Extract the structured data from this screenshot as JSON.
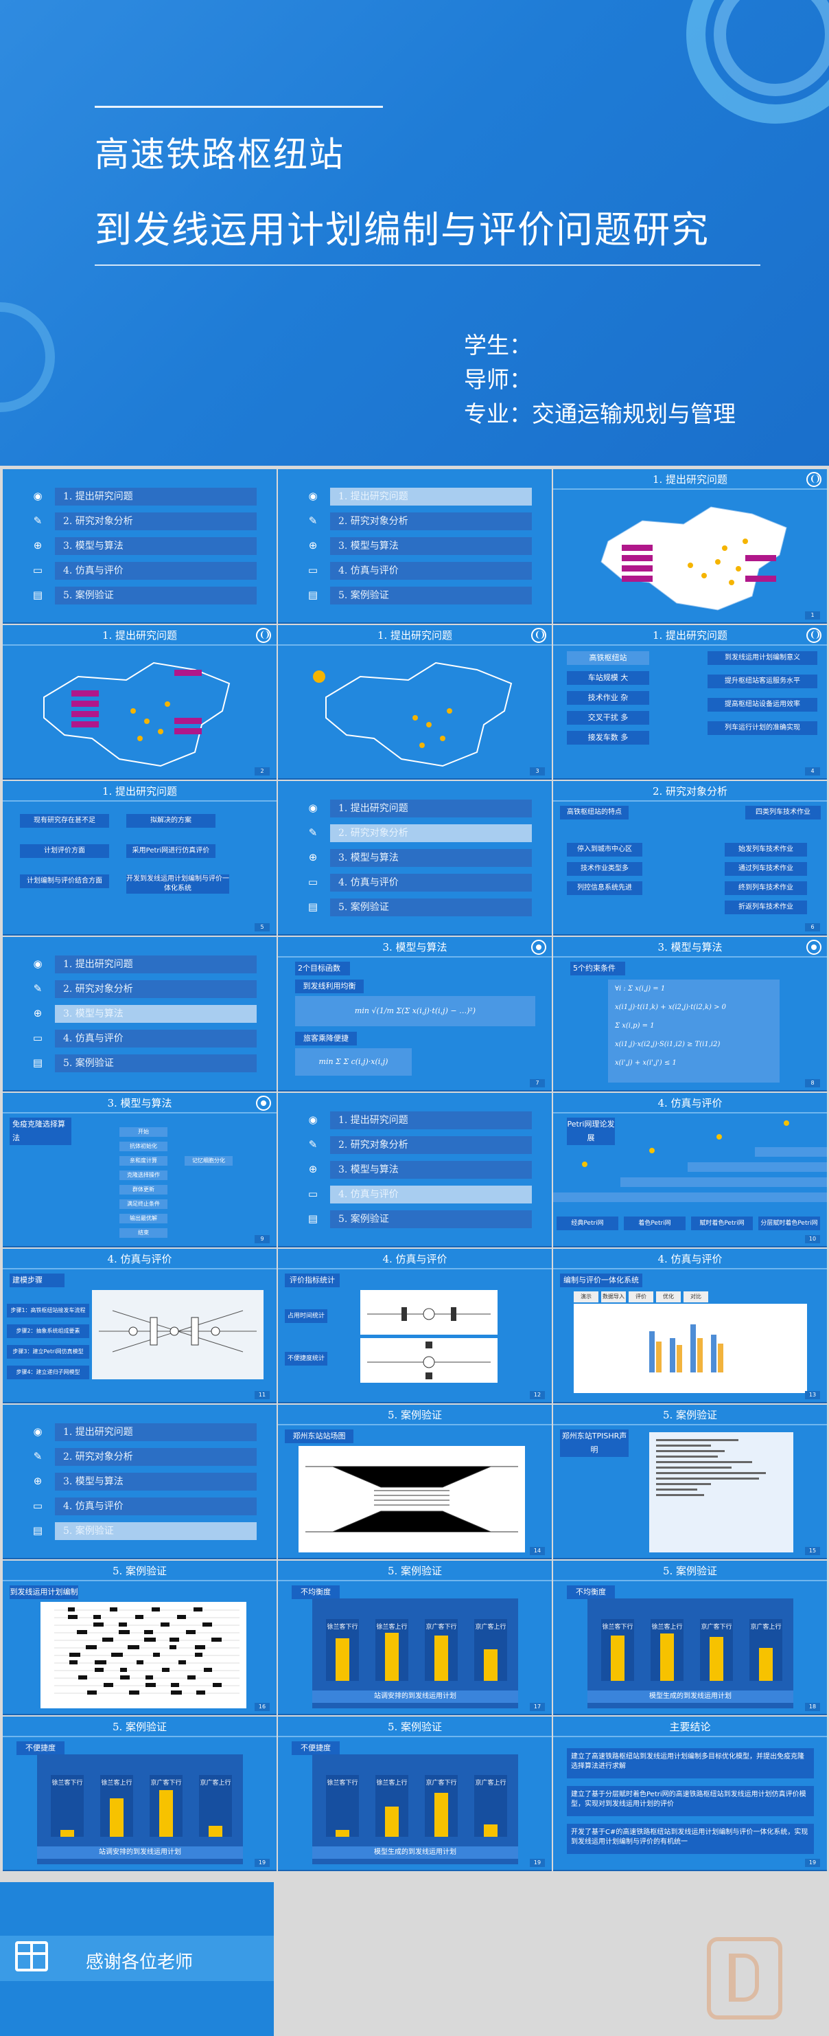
{
  "cover": {
    "title_line1": "高速铁路枢纽站",
    "title_line2": "到发线运用计划编制与评价问题研究",
    "student": "学生：",
    "advisor": "导师：",
    "major": "专业：交通运输规划与管理"
  },
  "agenda_items": [
    "1. 提出研究问题",
    "2. 研究对象分析",
    "3. 模型与算法",
    "4. 仿真与评价",
    "5. 案例验证"
  ],
  "section_titles": {
    "s1": "1. 提出研究问题",
    "s2": "2. 研究对象分析",
    "s3": "3. 模型与算法",
    "s4": "4. 仿真与评价",
    "s5": "5. 案例验证",
    "conclusion": "主要结论"
  },
  "slide6": {
    "left_items": [
      "高铁枢纽站",
      "车站规模 大",
      "技术作业 杂",
      "交叉干扰 多",
      "接发车数 多"
    ],
    "right_items": [
      "到发线运用计划编制意义",
      "提升枢纽站客运服务水平",
      "提高枢纽站设备运用效率",
      "列车运行计划的准确实现"
    ]
  },
  "slide7": {
    "rows": [
      [
        "现有研究存在甚不足",
        "拟解决的方案"
      ],
      [
        "计划评价方面",
        "采用Petri网进行仿真评价"
      ],
      [
        "计划编制与评价结合方面",
        "开发到发线运用计划编制与评价一体化系统"
      ]
    ]
  },
  "slide9": {
    "left_title": "高铁枢纽站的特点",
    "left_items": [
      "停入到城市中心区",
      "技术作业类型多",
      "列控信息系统先进"
    ],
    "right_title": "四类列车技术作业",
    "right_items": [
      "始发列车技术作业",
      "通过列车技术作业",
      "终到列车技术作业",
      "折返列车技术作业"
    ]
  },
  "slide11": {
    "heading": "2个目标函数",
    "sub1": "到发线利用均衡",
    "sub2": "旅客乘降便捷"
  },
  "slide12": {
    "heading": "5个约束条件"
  },
  "slide13": {
    "heading": "免疫克隆选择算法",
    "steps": [
      "开始",
      "抗体初始化",
      "亲和度计算",
      "克隆选择操作",
      "群体更新",
      "满足终止条件",
      "输出最优解",
      "结束"
    ],
    "side": "记忆细胞分化"
  },
  "slide15": {
    "heading": "Petri网理论发展",
    "stages": [
      "经典Petri网",
      "着色Petri网",
      "赋时着色Petri网",
      "分层赋时着色Petri网"
    ]
  },
  "slide16": {
    "heading": "建模步骤",
    "steps": [
      "步骤1：高铁枢纽站接发车流程",
      "步骤2：抽象系统组成要素",
      "步骤3：建立Petri网仿真模型",
      "步骤4：建立递归子网模型"
    ]
  },
  "slide17": {
    "heading": "评价指标统计",
    "labels": [
      "占用时间统计",
      "不便捷度统计"
    ]
  },
  "slide18": {
    "heading": "编制与评价一体化系统",
    "menu": [
      "演示",
      "数据导入",
      "评价",
      "优化",
      "对比"
    ]
  },
  "slide20": {
    "heading": "郑州东站站场图"
  },
  "slide21": {
    "heading": "郑州东站TPISHR声明"
  },
  "slide22": {
    "heading": "到发线运用计划编制"
  },
  "chart_slides": [
    {
      "id": "c23",
      "heading": "不均衡度",
      "caption": "站调安排的到发线运用计划",
      "cats": [
        "徐兰客下行",
        "徐兰客上行",
        "京广客下行",
        "京广客上行"
      ],
      "values": [
        0.78,
        0.88,
        0.82,
        0.58
      ]
    },
    {
      "id": "c24",
      "heading": "不均衡度",
      "caption": "模型生成的到发线运用计划",
      "cats": [
        "徐兰客下行",
        "徐兰客上行",
        "京广客下行",
        "京广客上行"
      ],
      "values": [
        0.82,
        0.86,
        0.8,
        0.6
      ]
    },
    {
      "id": "c25",
      "heading": "不便捷度",
      "caption": "站调安排的到发线运用计划",
      "cats": [
        "徐兰客下行",
        "徐兰客上行",
        "京广客下行",
        "京广客上行"
      ],
      "values": [
        0.12,
        0.7,
        0.85,
        0.2
      ]
    },
    {
      "id": "c26",
      "heading": "不便捷度",
      "caption": "模型生成的到发线运用计划",
      "cats": [
        "徐兰客下行",
        "徐兰客上行",
        "京广客下行",
        "京广客上行"
      ],
      "values": [
        0.12,
        0.55,
        0.8,
        0.22
      ]
    }
  ],
  "conclusions": [
    "建立了高速铁路枢纽站到发线运用计划编制多目标优化模型，并提出免疫克隆选择算法进行求解",
    "建立了基于分层赋时着色Petri网的高速铁路枢纽站到发线运用计划仿真评价模型，实现对到发线运用计划的评价",
    "开发了基于C#的高速铁路枢纽站到发线运用计划编制与评价一体化系统，实现到发线运用计划编制与评价的有机统一"
  ],
  "thanks": "感谢各位老师",
  "page_numbers": [
    "1",
    "2",
    "3",
    "4",
    "5",
    "6",
    "7",
    "8",
    "9",
    "10",
    "11",
    "12",
    "13",
    "14",
    "15",
    "16",
    "17",
    "18",
    "19"
  ],
  "colors": {
    "bg": "#2288de",
    "dark": "#1963c3",
    "accent": "#f7c200",
    "highlight": "#a8cdf0"
  }
}
